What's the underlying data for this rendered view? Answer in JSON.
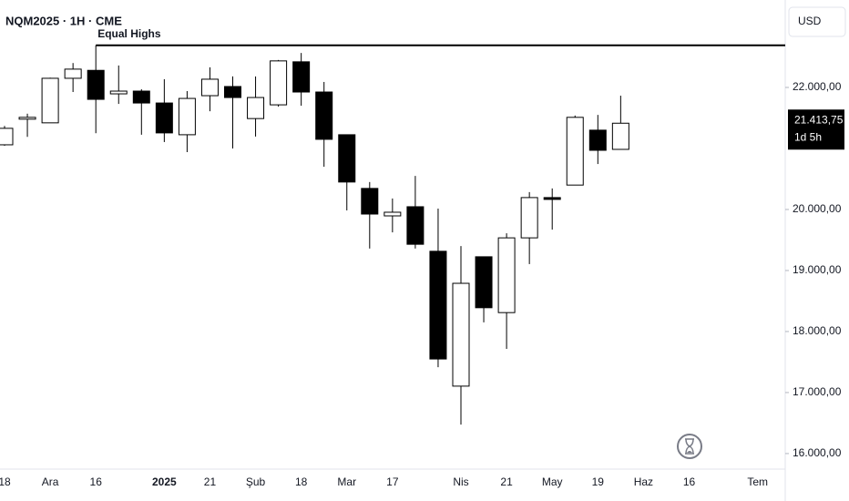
{
  "chart_data": {
    "type": "candlestick",
    "title": "NQM2025 · 1H · CME",
    "currency": "USD",
    "categories": [
      "18",
      null,
      "Ara",
      null,
      "16",
      null,
      null,
      "2025",
      null,
      "21",
      null,
      "Şub",
      null,
      "18",
      null,
      "Mar",
      null,
      "17",
      null,
      null,
      "Nis",
      null,
      "21",
      null,
      "May",
      null,
      "19",
      null,
      "Haz",
      null,
      "16",
      null,
      null,
      "Tem"
    ],
    "bold_categories": [
      "2025"
    ],
    "open": [
      21060,
      21480,
      21420,
      22150,
      22280,
      21895,
      21940,
      21745,
      21225,
      21865,
      22015,
      21490,
      21715,
      22420,
      21925,
      21225,
      20345,
      19895,
      20045,
      19315,
      17105,
      19225,
      18310,
      19535,
      20195,
      20400,
      21300,
      20985,
      null,
      null,
      null,
      null,
      null,
      null
    ],
    "high": [
      21370,
      21570,
      22160,
      22400,
      22690,
      22360,
      21970,
      22135,
      21940,
      22330,
      22180,
      22180,
      22450,
      22565,
      22090,
      21225,
      20450,
      20180,
      20550,
      20015,
      19400,
      19225,
      19610,
      20285,
      20345,
      21540,
      21550,
      21865,
      null,
      null,
      null,
      null,
      null,
      null
    ],
    "low": [
      21045,
      21190,
      21420,
      21925,
      21250,
      21730,
      21225,
      21105,
      20940,
      21610,
      21000,
      21195,
      21685,
      21700,
      20700,
      19985,
      19360,
      19625,
      19360,
      17415,
      16475,
      18150,
      17715,
      19105,
      19670,
      20400,
      20745,
      20985,
      null,
      null,
      null,
      null,
      null,
      null
    ],
    "close": [
      21330,
      21510,
      22150,
      22300,
      21805,
      21940,
      21745,
      21255,
      21820,
      22135,
      21835,
      21835,
      22435,
      21925,
      21150,
      20450,
      19925,
      19955,
      19430,
      17550,
      18790,
      18390,
      19535,
      20195,
      20165,
      21510,
      20970,
      21413.75,
      null,
      null,
      null,
      null,
      null,
      null
    ],
    "up_color": "#ffffff",
    "down_color": "#000000",
    "border_color": "#000000",
    "ylim": [
      15745,
      23433
    ],
    "yticks": [
      {
        "value": 16000,
        "label": "16.000,00"
      },
      {
        "value": 17000,
        "label": "17.000,00"
      },
      {
        "value": 18000,
        "label": "18.000,00"
      },
      {
        "value": 19000,
        "label": "19.000,00"
      },
      {
        "value": 20000,
        "label": "20.000,00"
      },
      {
        "value": 22000,
        "label": "22.000,00"
      }
    ],
    "grid": false,
    "annotation": {
      "text": "Equal Highs",
      "value": 22690
    },
    "last_price": {
      "value": 21413.75,
      "label": "21.413,75"
    },
    "countdown": "1d 5h"
  }
}
